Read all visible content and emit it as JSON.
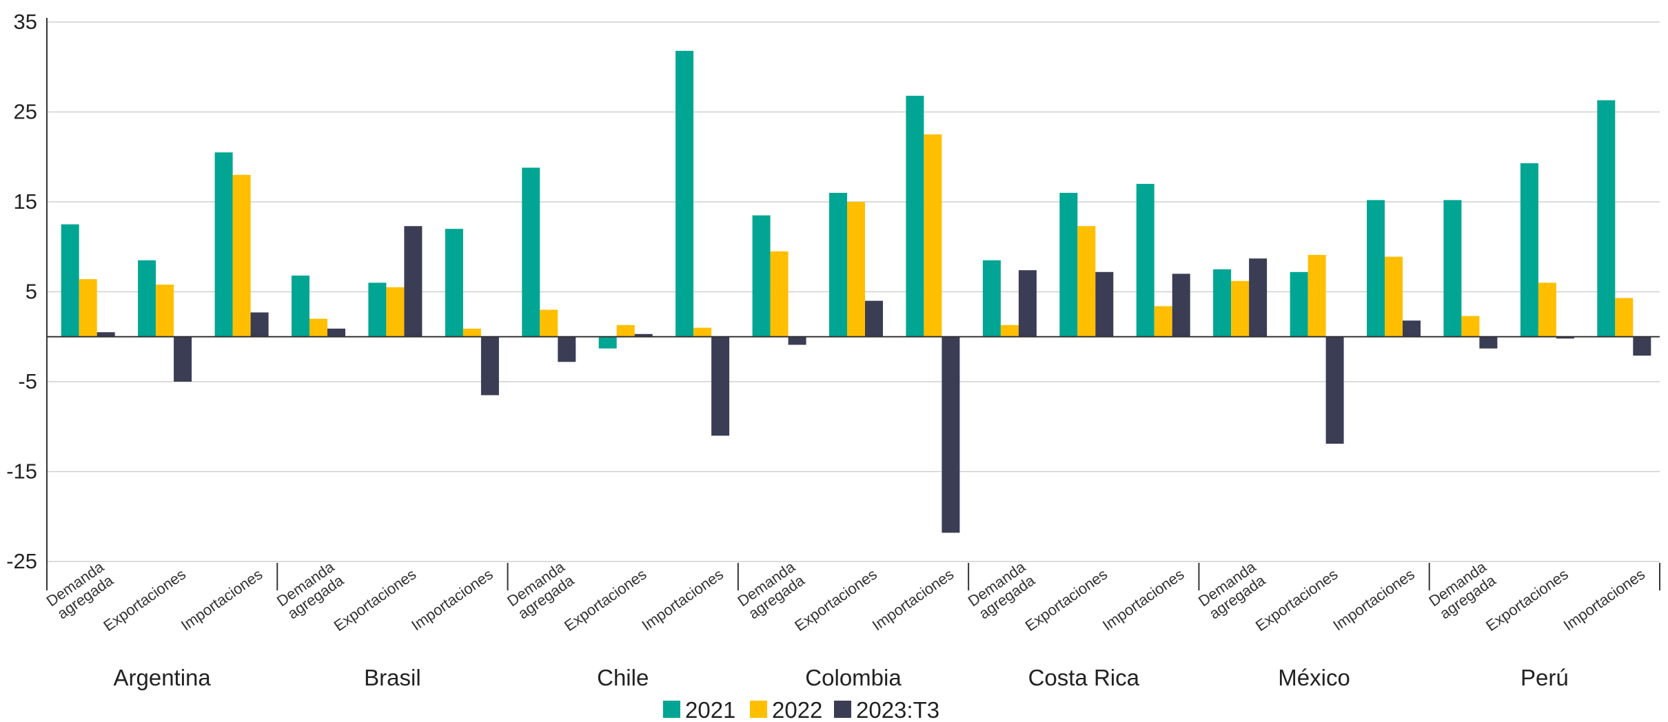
{
  "chart_data": {
    "type": "bar",
    "title": "",
    "xlabel": "",
    "ylabel": "",
    "ylim": [
      -25,
      35
    ],
    "yticks": [
      35,
      25,
      15,
      5,
      -5,
      -15,
      -25
    ],
    "grid": true,
    "legend_position": "bottom",
    "groups": [
      "Argentina",
      "Brasil",
      "Chile",
      "Colombia",
      "Costa Rica",
      "México",
      "Perú"
    ],
    "subcategories": [
      [
        "Demanda",
        "agregada"
      ],
      [
        "Exportaciones"
      ],
      [
        "Importaciones"
      ]
    ],
    "series": [
      {
        "name": "2021",
        "color": "#00A693",
        "values": [
          12.5,
          8.5,
          20.5,
          6.8,
          6.0,
          12.0,
          18.8,
          -1.3,
          31.8,
          13.5,
          16.0,
          26.8,
          8.5,
          16.0,
          17.0,
          7.5,
          7.2,
          15.2,
          15.2,
          19.3,
          26.3
        ]
      },
      {
        "name": "2022",
        "color": "#FFBF00",
        "values": [
          6.4,
          5.8,
          18.0,
          2.0,
          5.5,
          0.9,
          3.0,
          1.3,
          1.0,
          9.5,
          15.0,
          22.5,
          1.3,
          12.3,
          3.4,
          6.2,
          9.1,
          8.9,
          2.3,
          6.0,
          4.3
        ]
      },
      {
        "name": "2023:T3",
        "color": "#3B3D55",
        "values": [
          0.5,
          -5.0,
          2.7,
          0.9,
          12.3,
          -6.5,
          -2.8,
          0.3,
          -11.0,
          -0.9,
          4.0,
          -21.8,
          7.4,
          7.2,
          7.0,
          8.7,
          -11.9,
          1.8,
          -1.3,
          -0.2,
          -2.1
        ]
      }
    ]
  }
}
